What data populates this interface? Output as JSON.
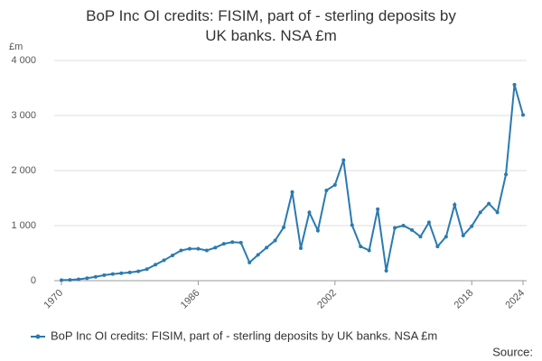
{
  "chart_data": {
    "type": "line",
    "title": "BoP Inc OI credits: FISIM, part of - sterling deposits by UK banks. NSA £m",
    "y_label": "£m",
    "source": "Source:",
    "x": [
      1970,
      1971,
      1972,
      1973,
      1974,
      1975,
      1976,
      1977,
      1978,
      1979,
      1980,
      1981,
      1982,
      1983,
      1984,
      1985,
      1986,
      1987,
      1988,
      1989,
      1990,
      1991,
      1992,
      1993,
      1994,
      1995,
      1996,
      1997,
      1998,
      1999,
      2000,
      2001,
      2002,
      2003,
      2004,
      2005,
      2006,
      2007,
      2008,
      2009,
      2010,
      2011,
      2012,
      2013,
      2014,
      2015,
      2016,
      2017,
      2018,
      2019,
      2020,
      2021,
      2022,
      2023,
      2024
    ],
    "series": [
      {
        "name": "BoP Inc OI credits: FISIM, part of - sterling deposits by UK banks. NSA £m",
        "color": "#2a7ab0",
        "values": [
          10,
          15,
          25,
          45,
          70,
          100,
          120,
          135,
          150,
          170,
          210,
          290,
          370,
          460,
          550,
          580,
          580,
          550,
          600,
          670,
          700,
          690,
          330,
          470,
          600,
          730,
          970,
          1610,
          590,
          1240,
          910,
          1640,
          1740,
          2190,
          1010,
          620,
          550,
          1300,
          180,
          960,
          1000,
          920,
          800,
          1060,
          620,
          800,
          1380,
          820,
          990,
          1240,
          1400,
          1240,
          1930,
          3560,
          3010
        ]
      }
    ],
    "xlim": [
      1970,
      2024
    ],
    "xticks": [
      1970,
      1986,
      2002,
      2018,
      2024
    ],
    "ylim": [
      0,
      4000
    ],
    "yticks": [
      0,
      {
        "value": 1000,
        "label": "1 000"
      },
      {
        "value": 2000,
        "label": "2 000"
      },
      {
        "value": 3000,
        "label": "3 000"
      },
      {
        "value": 4000,
        "label": "4 000"
      }
    ],
    "grid": true
  }
}
